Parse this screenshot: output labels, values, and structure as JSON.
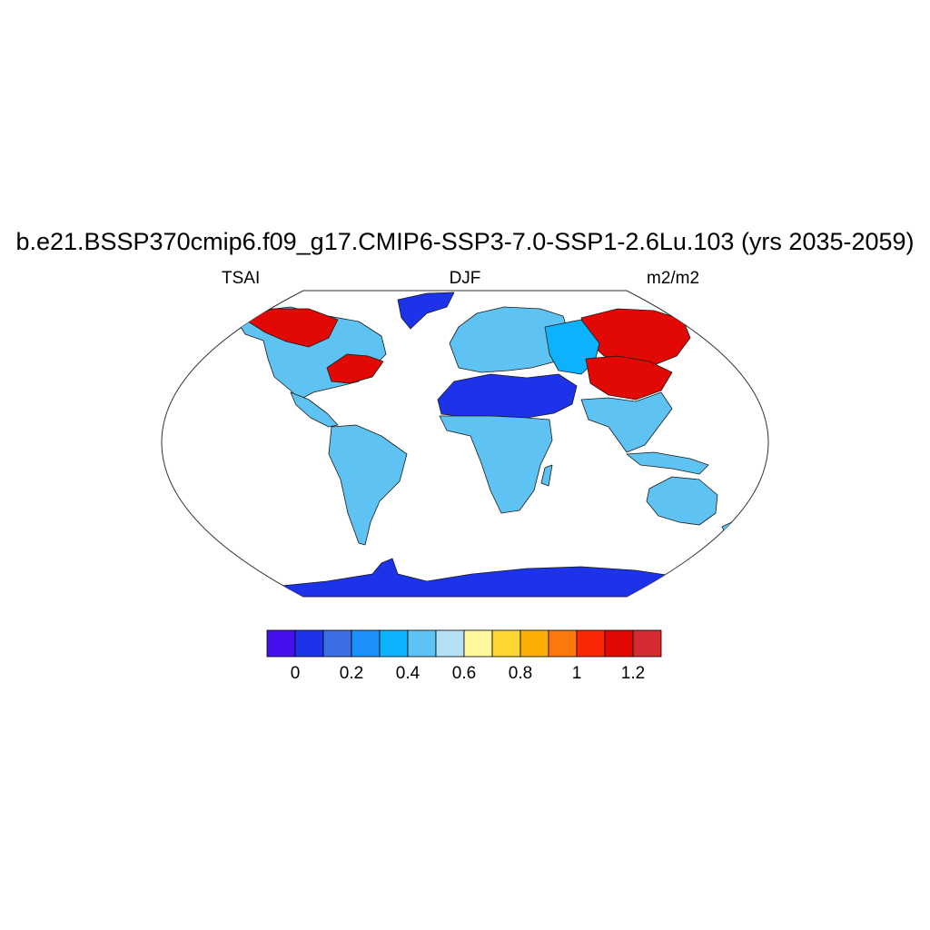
{
  "figure": {
    "title": "b.e21.BSSP370cmip6.f09_g17.CMIP6-SSP3-7.0-SSP1-2.6Lu.103 (yrs 2035-2059)",
    "variable": "TSAI",
    "season": "DJF",
    "units": "m2/m2"
  },
  "map": {
    "projection": "robinson",
    "ocean_color": "#ffffff",
    "coastline_color": "#1a1a1a"
  },
  "colorbar": {
    "colors": [
      "#4410ee",
      "#1c33ea",
      "#3c6ee6",
      "#1e90fc",
      "#0cb2fc",
      "#5ec3f2",
      "#b4e0f6",
      "#fef79e",
      "#fed632",
      "#fdae06",
      "#fd780b",
      "#fc2805",
      "#e20804",
      "#d42b30"
    ],
    "tick_labels": [
      "0",
      "0.2",
      "0.4",
      "0.6",
      "0.8",
      "1",
      "1.2"
    ]
  },
  "regions": [
    {
      "name": "antarctica",
      "level": 1
    },
    {
      "name": "greenland",
      "level": 1
    },
    {
      "name": "sahara-arabia",
      "level": 1
    },
    {
      "name": "north-america-west",
      "level": 5
    },
    {
      "name": "north-america-boreal",
      "level": 12
    },
    {
      "name": "north-america-east",
      "level": 12
    },
    {
      "name": "south-america",
      "level": 5
    },
    {
      "name": "africa-sub-sahara",
      "level": 5
    },
    {
      "name": "europe",
      "level": 5
    },
    {
      "name": "siberia",
      "level": 12
    },
    {
      "name": "central-asia",
      "level": 4
    },
    {
      "name": "tibet",
      "level": 12
    },
    {
      "name": "southeast-asia",
      "level": 5
    },
    {
      "name": "australia",
      "level": 5
    },
    {
      "name": "new-zealand",
      "level": 5
    }
  ]
}
